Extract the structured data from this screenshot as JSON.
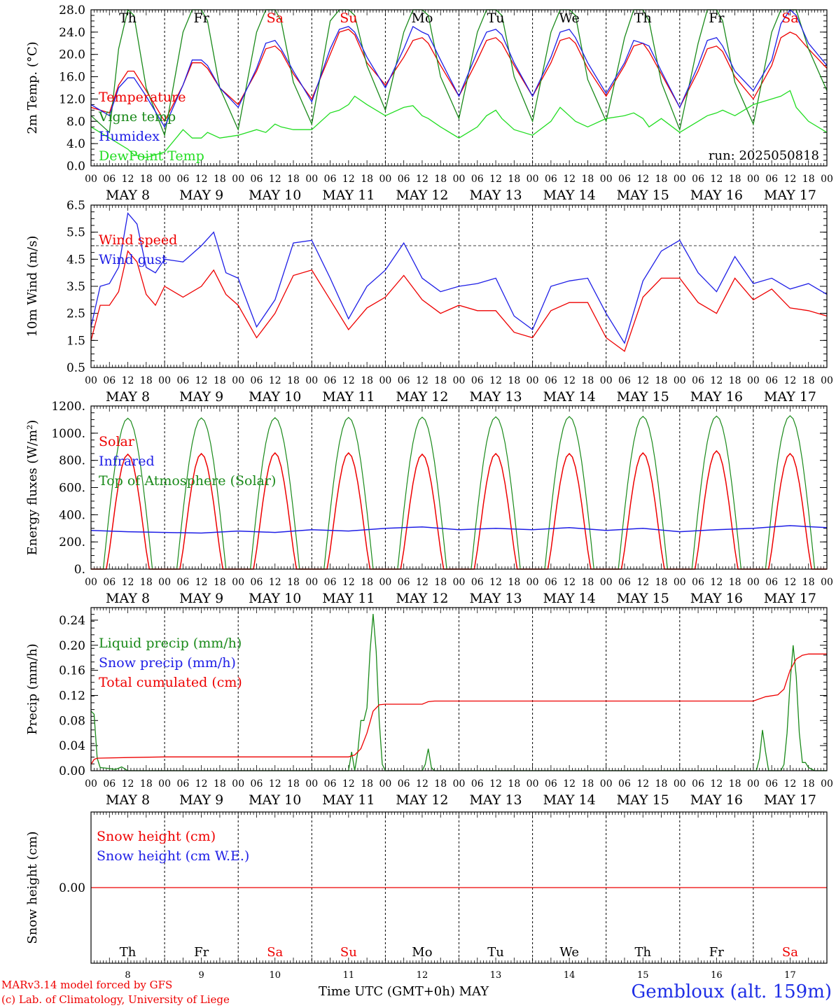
{
  "footer": {
    "credit_line1": "MARv3.14 model forced by GFS",
    "credit_line2": "(c) Lab. of Climatology, University of Liege",
    "xlabel": "Time UTC (GMT+0h)",
    "month": "MAY",
    "station": "Gembloux (alt. 159m)"
  },
  "colors": {
    "red": "#ee0000",
    "blue": "#1e1ee6",
    "green": "#1a8a1a",
    "lime": "#22dd22",
    "weekend": "#ee0000"
  },
  "days": [
    {
      "abbr": "Th",
      "date": "MAY  8",
      "num": "8",
      "weekend": false
    },
    {
      "abbr": "Fr",
      "date": "MAY  9",
      "num": "9",
      "weekend": false
    },
    {
      "abbr": "Sa",
      "date": "MAY 10",
      "num": "10",
      "weekend": true
    },
    {
      "abbr": "Su",
      "date": "MAY 11",
      "num": "11",
      "weekend": true
    },
    {
      "abbr": "Mo",
      "date": "MAY 12",
      "num": "12",
      "weekend": false
    },
    {
      "abbr": "Tu",
      "date": "MAY 13",
      "num": "13",
      "weekend": false
    },
    {
      "abbr": "We",
      "date": "MAY 14",
      "num": "14",
      "weekend": false
    },
    {
      "abbr": "Th",
      "date": "MAY 15",
      "num": "15",
      "weekend": false
    },
    {
      "abbr": "Fr",
      "date": "MAY 16",
      "num": "16",
      "weekend": false
    },
    {
      "abbr": "Sa",
      "date": "MAY 17",
      "num": "17",
      "weekend": true
    }
  ],
  "hour_ticks": [
    "00",
    "06",
    "12",
    "18"
  ],
  "chart_data": [
    {
      "type": "line",
      "id": "temp",
      "ylabel": "2m Temp. (°C)",
      "ylim": [
        0,
        28
      ],
      "yticks": [
        "0.0",
        "4.0",
        "8.0",
        "12.0",
        "16.0",
        "20.0",
        "24.0",
        "28.0"
      ],
      "annotation": "run: 2025050818",
      "x_hours": [
        0,
        6,
        9,
        12,
        14,
        18,
        24,
        30,
        33,
        36,
        38,
        42,
        48,
        54,
        57,
        60,
        62,
        66,
        72,
        78,
        81,
        84,
        86,
        90,
        96,
        102,
        105,
        108,
        110,
        114,
        120,
        126,
        129,
        132,
        134,
        138,
        144,
        150,
        153,
        156,
        158,
        162,
        168,
        174,
        177,
        180,
        182,
        186,
        192,
        198,
        201,
        204,
        206,
        210,
        216,
        222,
        225,
        228,
        230,
        234,
        240
      ],
      "series": [
        {
          "name": "Temperature",
          "color": "#ee0000",
          "values": [
            10.5,
            9.5,
            14.5,
            17.0,
            17.0,
            13.5,
            8.0,
            14.5,
            18.5,
            18.5,
            17.5,
            14.0,
            11.0,
            17.0,
            21.0,
            21.5,
            20.5,
            16.5,
            12.0,
            20.0,
            24.0,
            24.5,
            23.5,
            18.5,
            14.5,
            19.5,
            22.5,
            23.0,
            22.0,
            18.0,
            12.5,
            19.0,
            22.5,
            23.0,
            22.0,
            18.0,
            12.5,
            18.5,
            22.5,
            23.0,
            22.0,
            17.5,
            12.5,
            18.0,
            21.5,
            22.0,
            20.5,
            16.5,
            10.5,
            17.0,
            21.0,
            21.5,
            20.5,
            16.0,
            12.0,
            18.0,
            23.0,
            24.0,
            23.5,
            21.0,
            17.5
          ]
        },
        {
          "name": "Vigne temp",
          "color": "#1a8a1a",
          "values": [
            9.0,
            6.0,
            21.0,
            28.0,
            27.0,
            14.0,
            5.5,
            24.0,
            28.0,
            28.0,
            26.0,
            14.0,
            6.5,
            24.0,
            28.0,
            28.0,
            26.0,
            15.0,
            7.5,
            26.0,
            28.0,
            28.0,
            27.0,
            18.0,
            10.0,
            24.0,
            28.0,
            28.0,
            27.0,
            16.0,
            8.5,
            24.0,
            28.0,
            28.0,
            27.0,
            16.0,
            8.0,
            24.0,
            28.0,
            28.0,
            27.0,
            15.5,
            8.0,
            23.0,
            28.0,
            28.0,
            26.0,
            15.0,
            6.5,
            22.0,
            28.0,
            28.0,
            26.0,
            15.0,
            7.5,
            24.0,
            28.0,
            28.0,
            28.0,
            21.0,
            13.5
          ]
        },
        {
          "name": "Humidex",
          "color": "#1e1ee6",
          "values": [
            11.0,
            9.0,
            14.0,
            15.8,
            15.8,
            12.5,
            7.0,
            14.5,
            19.0,
            19.0,
            18.0,
            14.0,
            10.5,
            17.5,
            22.0,
            22.5,
            21.0,
            17.0,
            11.5,
            21.0,
            24.5,
            25.0,
            24.0,
            19.5,
            14.0,
            21.0,
            25.0,
            24.0,
            23.5,
            19.0,
            12.5,
            20.5,
            24.0,
            24.5,
            23.5,
            18.5,
            12.5,
            19.5,
            24.0,
            24.5,
            23.0,
            18.5,
            13.0,
            18.5,
            22.5,
            22.0,
            21.5,
            17.0,
            10.5,
            18.0,
            22.5,
            23.0,
            21.5,
            17.0,
            13.5,
            19.0,
            25.5,
            28.0,
            27.0,
            22.0,
            18.0
          ]
        },
        {
          "name": "DewPoint Temp",
          "color": "#22dd22",
          "values": [
            7.0,
            5.0,
            4.0,
            3.0,
            2.0,
            1.5,
            2.5,
            6.5,
            5.0,
            5.0,
            6.0,
            5.0,
            5.5,
            6.5,
            6.0,
            7.5,
            7.0,
            6.5,
            6.5,
            9.5,
            10.0,
            11.0,
            12.5,
            11.0,
            9.0,
            10.5,
            10.8,
            9.0,
            8.5,
            7.0,
            5.0,
            7.0,
            9.0,
            10.0,
            8.5,
            6.5,
            5.5,
            8.0,
            10.5,
            9.0,
            8.0,
            7.0,
            8.5,
            9.0,
            9.5,
            8.5,
            7.0,
            8.5,
            6.0,
            8.0,
            9.0,
            9.5,
            10.0,
            9.0,
            11.0,
            12.0,
            12.5,
            13.5,
            10.5,
            8.0,
            6.0
          ]
        }
      ]
    },
    {
      "type": "line",
      "id": "wind",
      "ylabel": "10m Wind (m/s)",
      "ylim": [
        0.5,
        6.5
      ],
      "yticks": [
        "0.5",
        "1.5",
        "2.5",
        "3.5",
        "4.5",
        "5.5",
        "6.5"
      ],
      "ref_line": 5.0,
      "x_hours": [
        0,
        3,
        6,
        9,
        12,
        15,
        18,
        21,
        24,
        30,
        36,
        40,
        44,
        48,
        54,
        60,
        66,
        72,
        78,
        84,
        90,
        96,
        102,
        108,
        114,
        120,
        126,
        132,
        138,
        144,
        150,
        156,
        162,
        168,
        174,
        180,
        186,
        192,
        198,
        204,
        210,
        216,
        222,
        228,
        234,
        240
      ],
      "series": [
        {
          "name": "Wind speed",
          "color": "#ee0000",
          "values": [
            1.5,
            2.8,
            2.8,
            3.3,
            4.8,
            4.4,
            3.2,
            2.8,
            3.5,
            3.1,
            3.5,
            4.1,
            3.2,
            2.8,
            1.6,
            2.5,
            3.9,
            4.1,
            3.0,
            1.9,
            2.7,
            3.1,
            3.9,
            3.0,
            2.5,
            2.8,
            2.6,
            2.6,
            1.8,
            1.6,
            2.6,
            2.9,
            2.9,
            1.6,
            1.1,
            3.1,
            3.8,
            3.8,
            2.9,
            2.5,
            3.8,
            3.0,
            3.4,
            2.7,
            2.6,
            2.4
          ]
        },
        {
          "name": "Wind gust",
          "color": "#1e1ee6",
          "values": [
            2.0,
            3.5,
            3.6,
            4.2,
            6.2,
            5.8,
            4.2,
            4.0,
            4.5,
            4.4,
            5.0,
            5.5,
            4.0,
            3.8,
            2.0,
            3.0,
            5.1,
            5.2,
            3.8,
            2.3,
            3.5,
            4.1,
            5.1,
            3.8,
            3.3,
            3.5,
            3.6,
            3.8,
            2.4,
            1.9,
            3.5,
            3.7,
            3.8,
            2.5,
            1.4,
            3.7,
            4.8,
            5.2,
            4.0,
            3.3,
            4.6,
            3.6,
            3.8,
            3.4,
            3.6,
            3.2
          ]
        }
      ]
    },
    {
      "type": "line",
      "id": "energy",
      "ylabel": "Energy fluxes (W/m²)",
      "ylim": [
        0,
        1200
      ],
      "yticks": [
        "0.",
        "200.",
        "400.",
        "600.",
        "800.",
        "1000.",
        "1200."
      ],
      "day_peaks": {
        "solar": [
          845,
          850,
          855,
          855,
          845,
          850,
          850,
          855,
          870,
          850
        ],
        "toa": [
          1110,
          1112,
          1114,
          1116,
          1118,
          1120,
          1122,
          1124,
          1126,
          1128
        ]
      },
      "series": [
        {
          "name": "Solar",
          "color": "#ee0000"
        },
        {
          "name": "Infrared",
          "color": "#1e1ee6",
          "x_hours": [
            0,
            12,
            24,
            36,
            48,
            60,
            72,
            84,
            96,
            108,
            120,
            132,
            144,
            156,
            168,
            180,
            192,
            204,
            216,
            228,
            240
          ],
          "values": [
            285,
            275,
            270,
            265,
            280,
            270,
            290,
            280,
            300,
            310,
            290,
            300,
            290,
            305,
            285,
            300,
            275,
            290,
            300,
            320,
            305
          ]
        },
        {
          "name": "Top of Atmosphere (Solar)",
          "color": "#1a8a1a"
        }
      ]
    },
    {
      "type": "line",
      "id": "precip",
      "ylabel": "Precip (mm/h)",
      "ylim": [
        0,
        0.26
      ],
      "yticks": [
        "0.00",
        "0.04",
        "0.08",
        "0.12",
        "0.16",
        "0.20",
        "0.24"
      ],
      "series": [
        {
          "name": "Liquid precip (mm/h)",
          "color": "#1a8a1a",
          "x_hours": [
            0,
            1,
            2,
            3,
            5,
            8,
            10,
            12,
            84,
            85,
            86,
            87,
            88,
            89,
            90,
            91,
            92,
            93,
            94,
            95,
            96,
            97,
            108,
            109,
            110,
            111,
            112,
            217,
            218,
            219,
            220,
            221,
            222,
            225,
            226,
            227,
            228,
            229,
            230,
            231,
            232,
            233,
            234,
            236,
            240
          ],
          "values": [
            0.095,
            0.09,
            0.02,
            0.005,
            0.004,
            0.002,
            0.006,
            0.0,
            0.0,
            0.03,
            0.0,
            0.03,
            0.08,
            0.08,
            0.1,
            0.19,
            0.25,
            0.19,
            0.08,
            0.01,
            0.0,
            0.0,
            0.0,
            0.01,
            0.035,
            0.005,
            0.0,
            0.0,
            0.02,
            0.065,
            0.03,
            0.0,
            0.0,
            0.0,
            0.01,
            0.06,
            0.14,
            0.2,
            0.15,
            0.06,
            0.013,
            0.013,
            0.005,
            0.0,
            0.0
          ]
        },
        {
          "name": "Snow precip (mm/h)",
          "color": "#1e1ee6",
          "x_hours": [],
          "values": []
        },
        {
          "name": "Total cumulated (cm)",
          "color": "#ee0000",
          "x_hours": [
            0,
            1,
            2,
            12,
            24,
            48,
            72,
            84,
            86,
            88,
            90,
            92,
            94,
            96,
            108,
            109,
            110,
            112,
            216,
            220,
            224,
            226,
            228,
            230,
            232,
            234,
            240
          ],
          "values": [
            0.01,
            0.018,
            0.02,
            0.021,
            0.022,
            0.022,
            0.022,
            0.022,
            0.025,
            0.035,
            0.06,
            0.095,
            0.105,
            0.106,
            0.106,
            0.108,
            0.11,
            0.111,
            0.111,
            0.118,
            0.121,
            0.13,
            0.16,
            0.178,
            0.184,
            0.186,
            0.186
          ]
        }
      ]
    },
    {
      "type": "line",
      "id": "snow",
      "ylabel": "Snow height (cm)",
      "ylim": [
        -1,
        1
      ],
      "yticks": [
        "0.00"
      ],
      "series": [
        {
          "name": "Snow height (cm)",
          "color": "#ee0000",
          "x_hours": [
            0,
            240
          ],
          "values": [
            0,
            0
          ]
        },
        {
          "name": "Snow height (cm W.E.)",
          "color": "#1e1ee6",
          "x_hours": [],
          "values": []
        }
      ]
    }
  ]
}
